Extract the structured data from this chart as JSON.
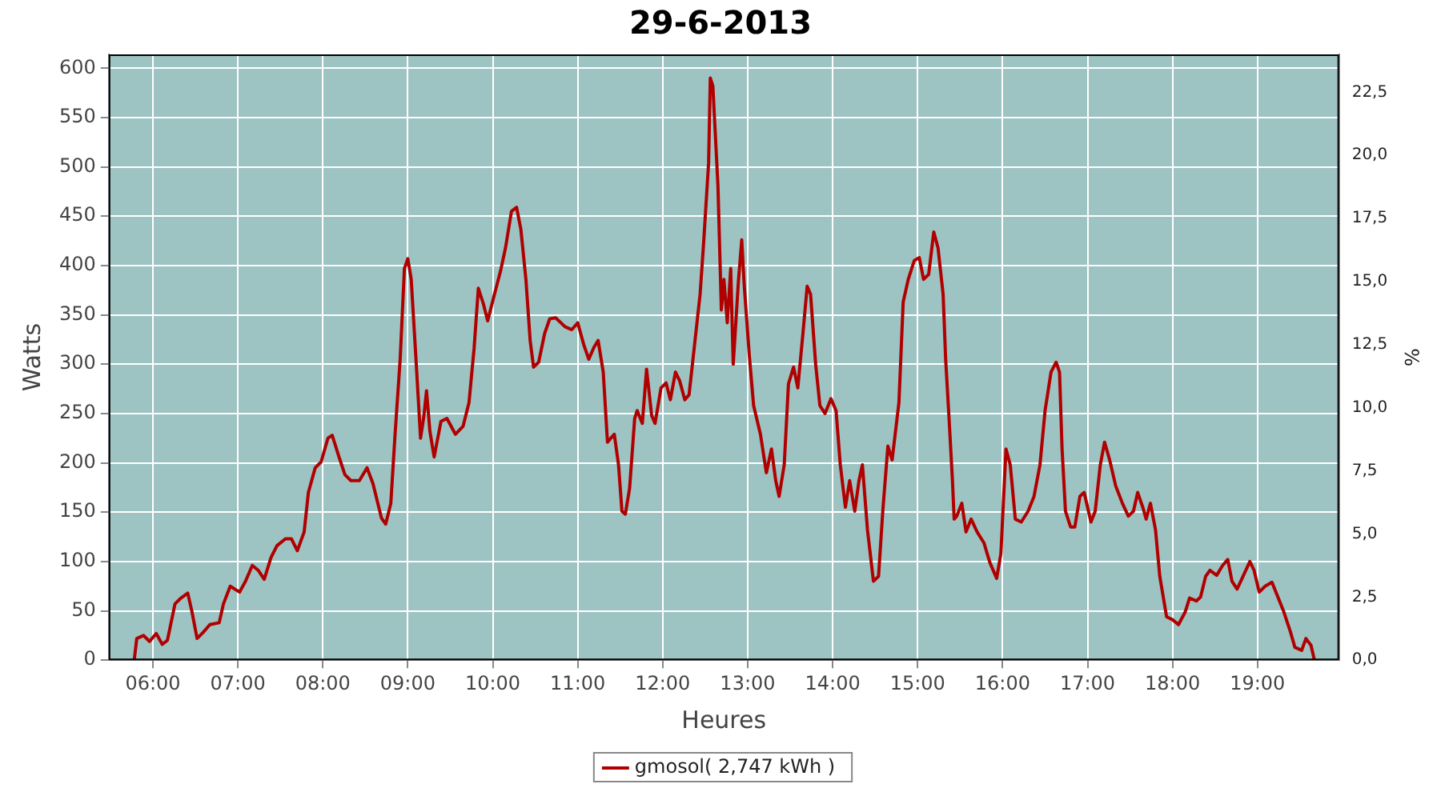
{
  "chart_data": {
    "type": "line",
    "title": "29-6-2013",
    "xlabel": "Heures",
    "ylabel": "Watts",
    "y2label": "%",
    "xlim": [
      5.48,
      19.96
    ],
    "xticks": [
      {
        "value": 6,
        "label": "06:00"
      },
      {
        "value": 7,
        "label": "07:00"
      },
      {
        "value": 8,
        "label": "08:00"
      },
      {
        "value": 9,
        "label": "09:00"
      },
      {
        "value": 10,
        "label": "10:00"
      },
      {
        "value": 11,
        "label": "11:00"
      },
      {
        "value": 12,
        "label": "12:00"
      },
      {
        "value": 13,
        "label": "13:00"
      },
      {
        "value": 14,
        "label": "14:00"
      },
      {
        "value": 15,
        "label": "15:00"
      },
      {
        "value": 16,
        "label": "16:00"
      },
      {
        "value": 17,
        "label": "17:00"
      },
      {
        "value": 18,
        "label": "18:00"
      },
      {
        "value": 19,
        "label": "19:00"
      }
    ],
    "ylim": [
      0,
      614
    ],
    "yticks": [
      0,
      50,
      100,
      150,
      200,
      250,
      300,
      350,
      400,
      450,
      500,
      550,
      600
    ],
    "y2lim": [
      0,
      24
    ],
    "y2ticks": [
      {
        "value": 0,
        "label": "0,0"
      },
      {
        "value": 2.5,
        "label": "2,5"
      },
      {
        "value": 5,
        "label": "5,0"
      },
      {
        "value": 7.5,
        "label": "7,5"
      },
      {
        "value": 10,
        "label": "10,0"
      },
      {
        "value": 12.5,
        "label": "12,5"
      },
      {
        "value": 15,
        "label": "15,0"
      },
      {
        "value": 17.5,
        "label": "17,5"
      },
      {
        "value": 20,
        "label": "20,0"
      },
      {
        "value": 22.5,
        "label": "22,5"
      }
    ],
    "grid": true,
    "legend": "bottom",
    "marker": "none",
    "line_style": "solid",
    "series": [
      {
        "name": "gmosol( 2,747 kWh )",
        "color": "#b00000",
        "x": [
          5.78,
          5.81,
          5.89,
          5.96,
          6.04,
          6.11,
          6.17,
          6.26,
          6.33,
          6.41,
          6.46,
          6.52,
          6.59,
          6.67,
          6.78,
          6.83,
          6.91,
          7.02,
          7.09,
          7.17,
          7.24,
          7.31,
          7.39,
          7.46,
          7.56,
          7.63,
          7.7,
          7.78,
          7.83,
          7.91,
          7.98,
          8.06,
          8.11,
          8.19,
          8.26,
          8.33,
          8.43,
          8.52,
          8.59,
          8.69,
          8.74,
          8.8,
          8.85,
          8.91,
          8.96,
          9.0,
          9.04,
          9.09,
          9.15,
          9.19,
          9.22,
          9.26,
          9.31,
          9.39,
          9.46,
          9.56,
          9.65,
          9.72,
          9.78,
          9.83,
          9.89,
          9.94,
          10.02,
          10.09,
          10.15,
          10.22,
          10.28,
          10.33,
          10.39,
          10.44,
          10.48,
          10.54,
          10.61,
          10.67,
          10.74,
          10.85,
          10.93,
          11.0,
          11.07,
          11.13,
          11.19,
          11.24,
          11.3,
          11.35,
          11.43,
          11.48,
          11.52,
          11.56,
          11.61,
          11.67,
          11.7,
          11.76,
          11.81,
          11.87,
          11.91,
          11.98,
          12.04,
          12.09,
          12.15,
          12.2,
          12.26,
          12.31,
          12.37,
          12.44,
          12.48,
          12.54,
          12.56,
          12.59,
          12.65,
          12.69,
          12.72,
          12.76,
          12.8,
          12.83,
          12.89,
          12.93,
          12.96,
          13.02,
          13.07,
          13.15,
          13.22,
          13.28,
          13.33,
          13.37,
          13.43,
          13.48,
          13.54,
          13.59,
          13.65,
          13.7,
          13.74,
          13.8,
          13.85,
          13.91,
          13.98,
          14.04,
          14.09,
          14.15,
          14.2,
          14.26,
          14.31,
          14.35,
          14.41,
          14.48,
          14.54,
          14.59,
          14.65,
          14.7,
          14.78,
          14.83,
          14.89,
          14.96,
          15.02,
          15.07,
          15.13,
          15.19,
          15.24,
          15.3,
          15.33,
          15.37,
          15.41,
          15.43,
          15.46,
          15.52,
          15.57,
          15.63,
          15.7,
          15.78,
          15.85,
          15.93,
          15.98,
          16.04,
          16.09,
          16.15,
          16.22,
          16.3,
          16.37,
          16.44,
          16.5,
          16.57,
          16.63,
          16.67,
          16.7,
          16.74,
          16.8,
          16.85,
          16.91,
          16.96,
          17.04,
          17.09,
          17.15,
          17.2,
          17.26,
          17.33,
          17.41,
          17.48,
          17.54,
          17.59,
          17.65,
          17.69,
          17.74,
          17.8,
          17.85,
          17.93,
          18.0,
          18.07,
          18.15,
          18.2,
          18.28,
          18.33,
          18.39,
          18.44,
          18.52,
          18.59,
          18.65,
          18.7,
          18.76,
          18.83,
          18.91,
          18.96,
          19.02,
          19.09,
          19.17,
          19.24,
          19.31,
          19.39,
          19.44,
          19.52,
          19.57,
          19.63,
          19.67
        ],
        "values": [
          0,
          22,
          25,
          19,
          27,
          16,
          20,
          57,
          63,
          68,
          49,
          22,
          28,
          36,
          38,
          57,
          75,
          69,
          80,
          96,
          91,
          82,
          104,
          116,
          123,
          123,
          111,
          130,
          170,
          195,
          201,
          225,
          228,
          206,
          188,
          182,
          182,
          195,
          179,
          144,
          138,
          159,
          229,
          305,
          397,
          407,
          386,
          314,
          225,
          248,
          273,
          232,
          206,
          242,
          245,
          229,
          237,
          261,
          316,
          377,
          361,
          344,
          371,
          394,
          418,
          455,
          459,
          437,
          386,
          324,
          297,
          302,
          331,
          346,
          347,
          338,
          335,
          342,
          320,
          305,
          317,
          324,
          292,
          221,
          229,
          198,
          151,
          148,
          174,
          245,
          253,
          240,
          295,
          248,
          240,
          276,
          281,
          264,
          292,
          283,
          264,
          269,
          316,
          371,
          421,
          504,
          590,
          582,
          481,
          355,
          386,
          342,
          397,
          300,
          383,
          426,
          379,
          308,
          258,
          229,
          190,
          214,
          182,
          166,
          198,
          280,
          297,
          276,
          331,
          379,
          371,
          300,
          258,
          250,
          265,
          253,
          198,
          155,
          182,
          151,
          182,
          198,
          132,
          80,
          85,
          151,
          217,
          203,
          261,
          363,
          386,
          405,
          408,
          386,
          391,
          434,
          418,
          371,
          305,
          245,
          182,
          143,
          146,
          159,
          130,
          143,
          130,
          119,
          99,
          83,
          108,
          214,
          198,
          143,
          140,
          151,
          166,
          198,
          253,
          292,
          302,
          292,
          214,
          151,
          135,
          135,
          166,
          170,
          140,
          151,
          198,
          221,
          203,
          177,
          159,
          146,
          151,
          170,
          155,
          143,
          159,
          132,
          85,
          44,
          41,
          36,
          49,
          63,
          60,
          64,
          85,
          91,
          86,
          96,
          102,
          80,
          72,
          85,
          100,
          91,
          69,
          75,
          79,
          64,
          49,
          28,
          13,
          10,
          22,
          15,
          0
        ]
      }
    ]
  }
}
